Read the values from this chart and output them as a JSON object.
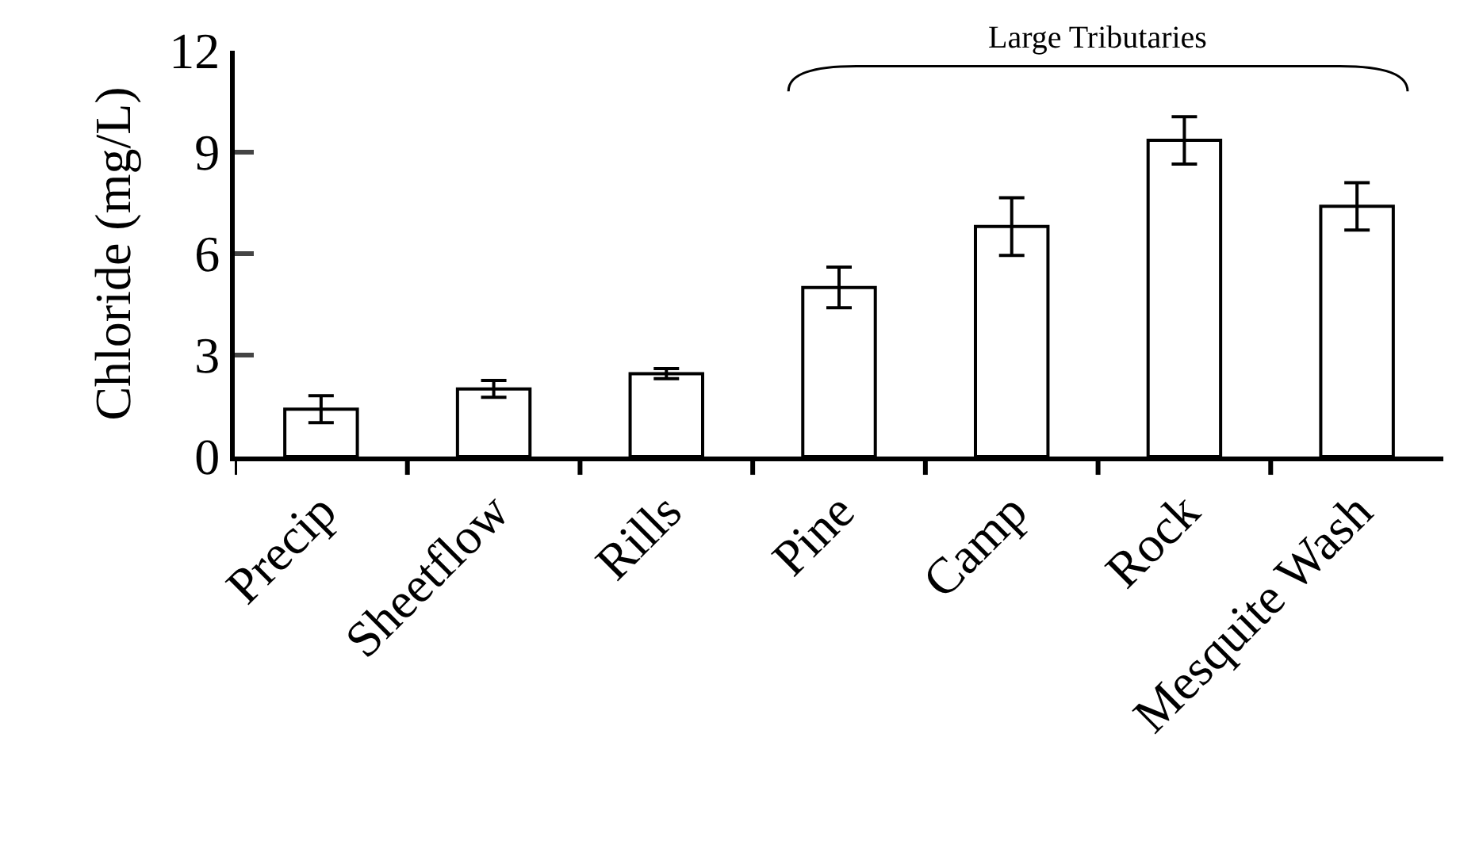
{
  "chart_data": {
    "type": "bar",
    "ylabel": "Chloride (mg/L)",
    "categories": [
      "Precip",
      "Sheetflow",
      "Rills",
      "Pine",
      "Camp",
      "Rock",
      "Mesquite Wash"
    ],
    "values": [
      1.4,
      2.0,
      2.45,
      5.0,
      6.8,
      9.35,
      7.4
    ],
    "errors": [
      0.4,
      0.25,
      0.15,
      0.6,
      0.85,
      0.7,
      0.7
    ],
    "color": "#ffffff",
    "ylim": [
      0,
      12
    ],
    "yticks": [
      0,
      3,
      6,
      9,
      12
    ],
    "annotations": [
      "Large Tributaries"
    ]
  }
}
